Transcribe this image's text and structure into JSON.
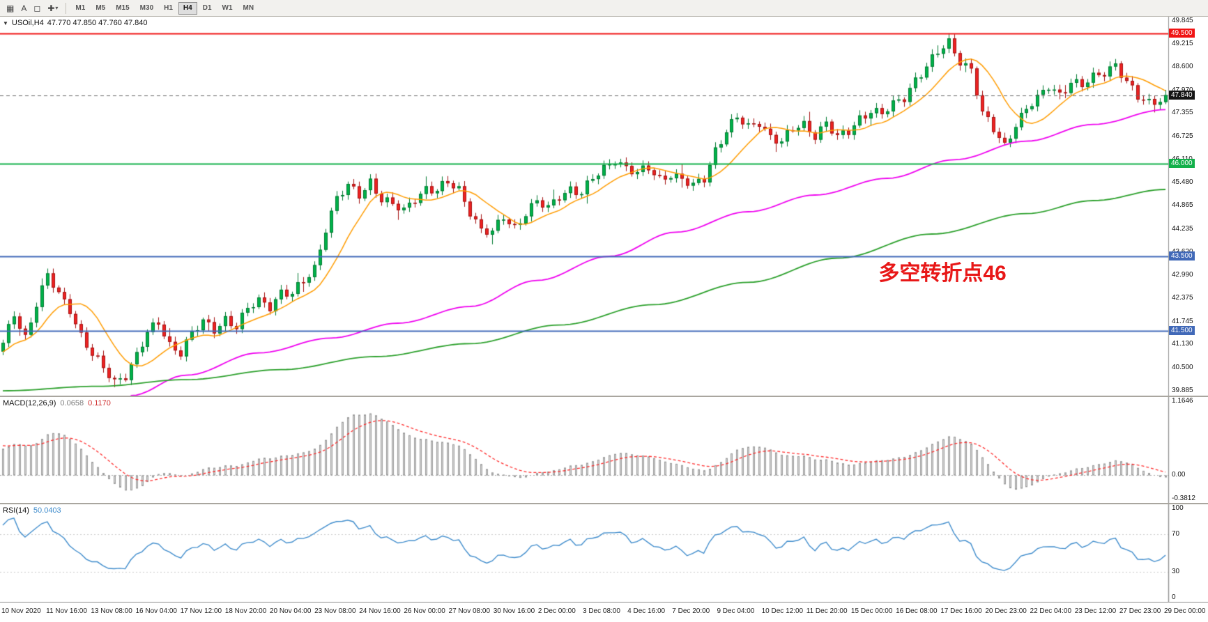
{
  "toolbar": {
    "icon_chart": "▦",
    "icon_text": "A",
    "icon_objects": "◻",
    "icon_crosshair": "✚",
    "icon_dropdown": "▾",
    "timeframes": [
      {
        "label": "M1",
        "active": false
      },
      {
        "label": "M5",
        "active": false
      },
      {
        "label": "M15",
        "active": false
      },
      {
        "label": "M30",
        "active": false
      },
      {
        "label": "H1",
        "active": false
      },
      {
        "label": "H4",
        "active": true
      },
      {
        "label": "D1",
        "active": false
      },
      {
        "label": "W1",
        "active": false
      },
      {
        "label": "MN",
        "active": false
      }
    ]
  },
  "price_chart": {
    "collapse_arrow": "▼",
    "symbol": "USOil,H4",
    "ohlc": "47.770 47.850 47.760 47.840"
  },
  "macd_panel": {
    "name": "MACD(12,26,9)",
    "value_main": "0.0658",
    "value_signal": "0.1170"
  },
  "rsi_panel": {
    "name": "RSI(14)",
    "value": "50.0403"
  },
  "chart_data": {
    "type": "candlestick",
    "symbol": "USOil",
    "timeframe": "H4",
    "price_axis": {
      "labels": [
        "49.845",
        "49.215",
        "48.600",
        "47.970",
        "47.355",
        "46.725",
        "46.110",
        "45.480",
        "44.865",
        "44.235",
        "43.620",
        "42.990",
        "42.375",
        "41.745",
        "41.130",
        "40.500",
        "39.885"
      ],
      "range": {
        "min": 39.75,
        "max": 49.95
      }
    },
    "horizontal_lines": [
      {
        "price": 49.5,
        "label": "49.500",
        "color": "#f01414"
      },
      {
        "price": 46.0,
        "label": "46.000",
        "color": "#12b04a"
      },
      {
        "price": 43.5,
        "label": "43.500",
        "color": "#4169b8"
      },
      {
        "price": 41.5,
        "label": "41.500",
        "color": "#4169b8"
      }
    ],
    "current_price": {
      "price": 47.84,
      "label": "47.840",
      "line_color": "#666666",
      "tag_bg": "#141414"
    },
    "annotation": {
      "text": "多空转折点46",
      "color": "#e81717",
      "x_frac": 0.752,
      "price": 42.85
    },
    "candles": {
      "count": 210,
      "up_fill": "#00b24a",
      "up_edge": "#007a30",
      "down_fill": "#ee2222",
      "down_edge": "#a31111",
      "close_keyframes": [
        [
          0,
          41.1
        ],
        [
          2,
          41.95
        ],
        [
          4,
          41.35
        ],
        [
          6,
          42.25
        ],
        [
          8,
          42.95
        ],
        [
          10,
          42.45
        ],
        [
          12,
          42.1
        ],
        [
          14,
          41.4
        ],
        [
          16,
          40.85
        ],
        [
          18,
          40.45
        ],
        [
          20,
          40.12
        ],
        [
          22,
          40.35
        ],
        [
          24,
          40.85
        ],
        [
          26,
          41.4
        ],
        [
          28,
          41.7
        ],
        [
          30,
          41.15
        ],
        [
          32,
          40.95
        ],
        [
          34,
          41.4
        ],
        [
          36,
          41.7
        ],
        [
          38,
          41.55
        ],
        [
          40,
          41.85
        ],
        [
          42,
          41.6
        ],
        [
          44,
          42.05
        ],
        [
          46,
          42.3
        ],
        [
          48,
          42.2
        ],
        [
          50,
          42.55
        ],
        [
          52,
          42.45
        ],
        [
          54,
          42.8
        ],
        [
          56,
          43.2
        ],
        [
          58,
          44.3
        ],
        [
          60,
          45.05
        ],
        [
          62,
          45.35
        ],
        [
          64,
          45.15
        ],
        [
          66,
          45.55
        ],
        [
          68,
          45.05
        ],
        [
          70,
          44.85
        ],
        [
          72,
          44.7
        ],
        [
          74,
          45.1
        ],
        [
          76,
          45.35
        ],
        [
          78,
          45.25
        ],
        [
          80,
          45.45
        ],
        [
          82,
          45.3
        ],
        [
          84,
          44.75
        ],
        [
          86,
          44.2
        ],
        [
          88,
          44.1
        ],
        [
          90,
          44.55
        ],
        [
          92,
          44.3
        ],
        [
          94,
          44.7
        ],
        [
          96,
          44.95
        ],
        [
          98,
          44.75
        ],
        [
          100,
          45.15
        ],
        [
          102,
          45.35
        ],
        [
          104,
          45.2
        ],
        [
          106,
          45.55
        ],
        [
          108,
          45.85
        ],
        [
          110,
          46.15
        ],
        [
          112,
          45.9
        ],
        [
          114,
          45.7
        ],
        [
          116,
          45.85
        ],
        [
          118,
          45.6
        ],
        [
          120,
          45.75
        ],
        [
          122,
          45.55
        ],
        [
          124,
          45.35
        ],
        [
          126,
          45.6
        ],
        [
          128,
          46.4
        ],
        [
          130,
          46.9
        ],
        [
          132,
          47.2
        ],
        [
          134,
          46.95
        ],
        [
          136,
          47.15
        ],
        [
          138,
          46.75
        ],
        [
          140,
          46.55
        ],
        [
          142,
          46.9
        ],
        [
          144,
          47.05
        ],
        [
          146,
          46.8
        ],
        [
          148,
          47.1
        ],
        [
          150,
          46.65
        ],
        [
          152,
          46.85
        ],
        [
          154,
          47.25
        ],
        [
          156,
          47.45
        ],
        [
          158,
          47.3
        ],
        [
          160,
          47.55
        ],
        [
          162,
          47.8
        ],
        [
          164,
          48.3
        ],
        [
          166,
          48.6
        ],
        [
          168,
          48.95
        ],
        [
          170,
          49.25
        ],
        [
          172,
          48.8
        ],
        [
          174,
          48.55
        ],
        [
          176,
          47.3
        ],
        [
          178,
          46.9
        ],
        [
          180,
          46.5
        ],
        [
          182,
          47.1
        ],
        [
          184,
          47.45
        ],
        [
          186,
          47.7
        ],
        [
          188,
          48.1
        ],
        [
          190,
          47.9
        ],
        [
          192,
          48.2
        ],
        [
          194,
          48.05
        ],
        [
          196,
          48.3
        ],
        [
          198,
          48.5
        ],
        [
          200,
          48.7
        ],
        [
          202,
          48.15
        ],
        [
          204,
          47.75
        ],
        [
          206,
          47.65
        ],
        [
          209,
          47.84
        ]
      ]
    },
    "prehistory": {
      "bars": 70,
      "keyframes": [
        [
          0,
          39.2
        ],
        [
          10,
          37.6
        ],
        [
          18,
          36.7
        ],
        [
          26,
          37.4
        ],
        [
          40,
          39.3
        ],
        [
          55,
          40.6
        ],
        [
          69,
          41.0
        ]
      ]
    },
    "moving_averages": {
      "orange": {
        "color": "#ff9c00",
        "period": 10
      },
      "magenta": {
        "color": "#ef00ef",
        "keyframes": [
          [
            0.11,
            39.75
          ],
          [
            0.16,
            40.3
          ],
          [
            0.22,
            40.9
          ],
          [
            0.28,
            41.3
          ],
          [
            0.34,
            41.7
          ],
          [
            0.4,
            42.15
          ],
          [
            0.46,
            42.85
          ],
          [
            0.52,
            43.5
          ],
          [
            0.58,
            44.15
          ],
          [
            0.64,
            44.7
          ],
          [
            0.7,
            45.15
          ],
          [
            0.76,
            45.6
          ],
          [
            0.82,
            46.1
          ],
          [
            0.88,
            46.6
          ],
          [
            0.94,
            47.05
          ],
          [
            1,
            47.45
          ]
        ]
      },
      "green": {
        "color": "#2ca02c",
        "keyframes": [
          [
            0,
            39.88
          ],
          [
            0.08,
            40.0
          ],
          [
            0.16,
            40.18
          ],
          [
            0.24,
            40.45
          ],
          [
            0.32,
            40.8
          ],
          [
            0.4,
            41.15
          ],
          [
            0.48,
            41.65
          ],
          [
            0.56,
            42.2
          ],
          [
            0.64,
            42.8
          ],
          [
            0.72,
            43.45
          ],
          [
            0.8,
            44.1
          ],
          [
            0.88,
            44.65
          ],
          [
            0.94,
            45.0
          ],
          [
            1,
            45.3
          ]
        ]
      }
    },
    "macd": {
      "fast": 12,
      "slow": 26,
      "signal": 9,
      "axis_labels": [
        "1.1646",
        "0.00",
        "-0.3812"
      ],
      "range": {
        "min": -0.3812,
        "max": 1.1646
      },
      "histogram_color": "#d4d4d4",
      "histogram_edge": "#9c9c9c",
      "signal_color": "#ff2d2d"
    },
    "rsi": {
      "period": 14,
      "axis_labels": [
        "100",
        "70",
        "30",
        "0"
      ],
      "levels": [
        70,
        30
      ],
      "line_color": "#3f8ccc"
    },
    "time_axis_labels": [
      "10 Nov 2020",
      "11 Nov 16:00",
      "13 Nov 08:00",
      "16 Nov 04:00",
      "17 Nov 12:00",
      "18 Nov 20:00",
      "20 Nov 04:00",
      "23 Nov 08:00",
      "24 Nov 16:00",
      "26 Nov 00:00",
      "27 Nov 08:00",
      "30 Nov 16:00",
      "2 Dec 00:00",
      "3 Dec 08:00",
      "4 Dec 16:00",
      "7 Dec 20:00",
      "9 Dec 04:00",
      "10 Dec 12:00",
      "11 Dec 20:00",
      "15 Dec 00:00",
      "16 Dec 08:00",
      "17 Dec 16:00",
      "20 Dec 23:00",
      "22 Dec 04:00",
      "23 Dec 12:00",
      "27 Dec 23:00",
      "29 Dec 00:00"
    ]
  }
}
